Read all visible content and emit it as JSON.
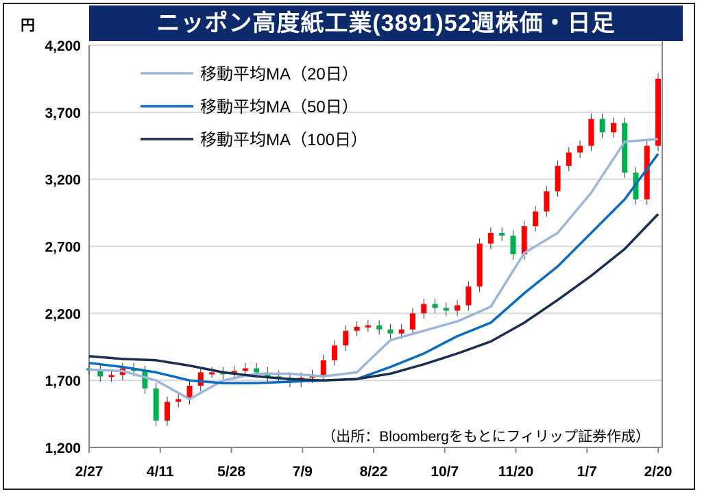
{
  "chart_data": {
    "type": "candlestick+line",
    "title": "ニッポン高度紙工業(3891)52週株価・日足",
    "ylabel": "円",
    "ylim": [
      1200,
      4200
    ],
    "yticks": [
      "1,200",
      "1,700",
      "2,200",
      "2,700",
      "3,200",
      "3,700",
      "4,200"
    ],
    "ytick_values": [
      1200,
      1700,
      2200,
      2700,
      3200,
      3700,
      4200
    ],
    "xticks": [
      "2/27",
      "4/11",
      "5/28",
      "7/9",
      "8/22",
      "10/7",
      "11/20",
      "1/7",
      "2/20"
    ],
    "source": "（出所：Bloombergをもとにフィリップ証券作成）",
    "grid": true,
    "legend_position": "top-left",
    "up_color": "#ff0000",
    "down_color": "#00b050",
    "weekly_closes": [
      1780,
      1730,
      1740,
      1790,
      1770,
      1640,
      1400,
      1540,
      1560,
      1660,
      1760,
      1760,
      1750,
      1770,
      1790,
      1760,
      1730,
      1720,
      1690,
      1720,
      1740,
      1850,
      1960,
      2070,
      2100,
      2110,
      2080,
      2050,
      2080,
      2200,
      2270,
      2240,
      2220,
      2260,
      2400,
      2720,
      2800,
      2780,
      2640,
      2850,
      2960,
      3110,
      3300,
      3400,
      3450,
      3650,
      3550,
      3620,
      3250,
      3050,
      3450,
      3950
    ],
    "series": [
      {
        "name": "移動平均MA（20日）",
        "color": "#9db6da",
        "values": [
          1780,
          1770,
          1700,
          1560,
          1700,
          1750,
          1750,
          1730,
          1760,
          2000,
          2070,
          2140,
          2250,
          2650,
          2800,
          3100,
          3480,
          3500
        ]
      },
      {
        "name": "移動平均MA（50日）",
        "color": "#0a6cc0",
        "values": [
          1830,
          1800,
          1760,
          1700,
          1680,
          1680,
          1690,
          1700,
          1710,
          1800,
          1900,
          2030,
          2130,
          2350,
          2550,
          2800,
          3050,
          3390
        ]
      },
      {
        "name": "移動平均MA（100日）",
        "color": "#1a2e50",
        "values": [
          1880,
          1860,
          1850,
          1810,
          1760,
          1730,
          1710,
          1700,
          1710,
          1750,
          1820,
          1900,
          1990,
          2130,
          2300,
          2480,
          2680,
          2940
        ]
      }
    ]
  }
}
